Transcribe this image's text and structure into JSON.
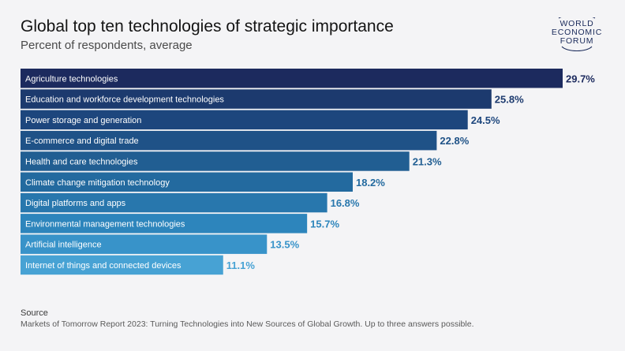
{
  "header": {
    "title": "Global top ten technologies of strategic importance",
    "subtitle": "Percent of respondents, average"
  },
  "logo": {
    "line1": "WORLD",
    "line2": "ECONOMIC",
    "line3": "FORUM"
  },
  "footer": {
    "source_heading": "Source",
    "source_text": "Markets of Tomorrow Report 2023: Turning Technologies into New Sources of Global Growth. Up to three answers possible."
  },
  "chart_data": {
    "type": "bar",
    "orientation": "horizontal",
    "categories": [
      "Agriculture technologies",
      "Education and workforce development technologies",
      "Power storage and generation",
      "E-commerce and digital trade",
      "Health and care technologies",
      "Climate change mitigation technology",
      "Digital platforms and apps",
      "Environmental management technologies",
      "Artificial intelligence",
      "Internet of things and connected devices"
    ],
    "values": [
      29.7,
      25.8,
      24.5,
      22.8,
      21.3,
      18.2,
      16.8,
      15.7,
      13.5,
      11.1
    ],
    "value_labels": [
      "29.7%",
      "25.8%",
      "24.5%",
      "22.8%",
      "21.3%",
      "18.2%",
      "16.8%",
      "15.7%",
      "13.5%",
      "11.1%"
    ],
    "colors": [
      "#1c2a5e",
      "#1c3a6e",
      "#1d467d",
      "#1f5287",
      "#215e92",
      "#236a9f",
      "#2877ad",
      "#2d85bc",
      "#3893c9",
      "#47a2d4"
    ],
    "label_colors": [
      "#1c2a5e",
      "#1c3a6e",
      "#1d467d",
      "#1f5287",
      "#215e92",
      "#236a9f",
      "#2877ad",
      "#2d85bc",
      "#3893c9",
      "#47a2d4"
    ],
    "xlim": [
      0,
      29.7
    ],
    "grid": false,
    "legend": "none"
  }
}
